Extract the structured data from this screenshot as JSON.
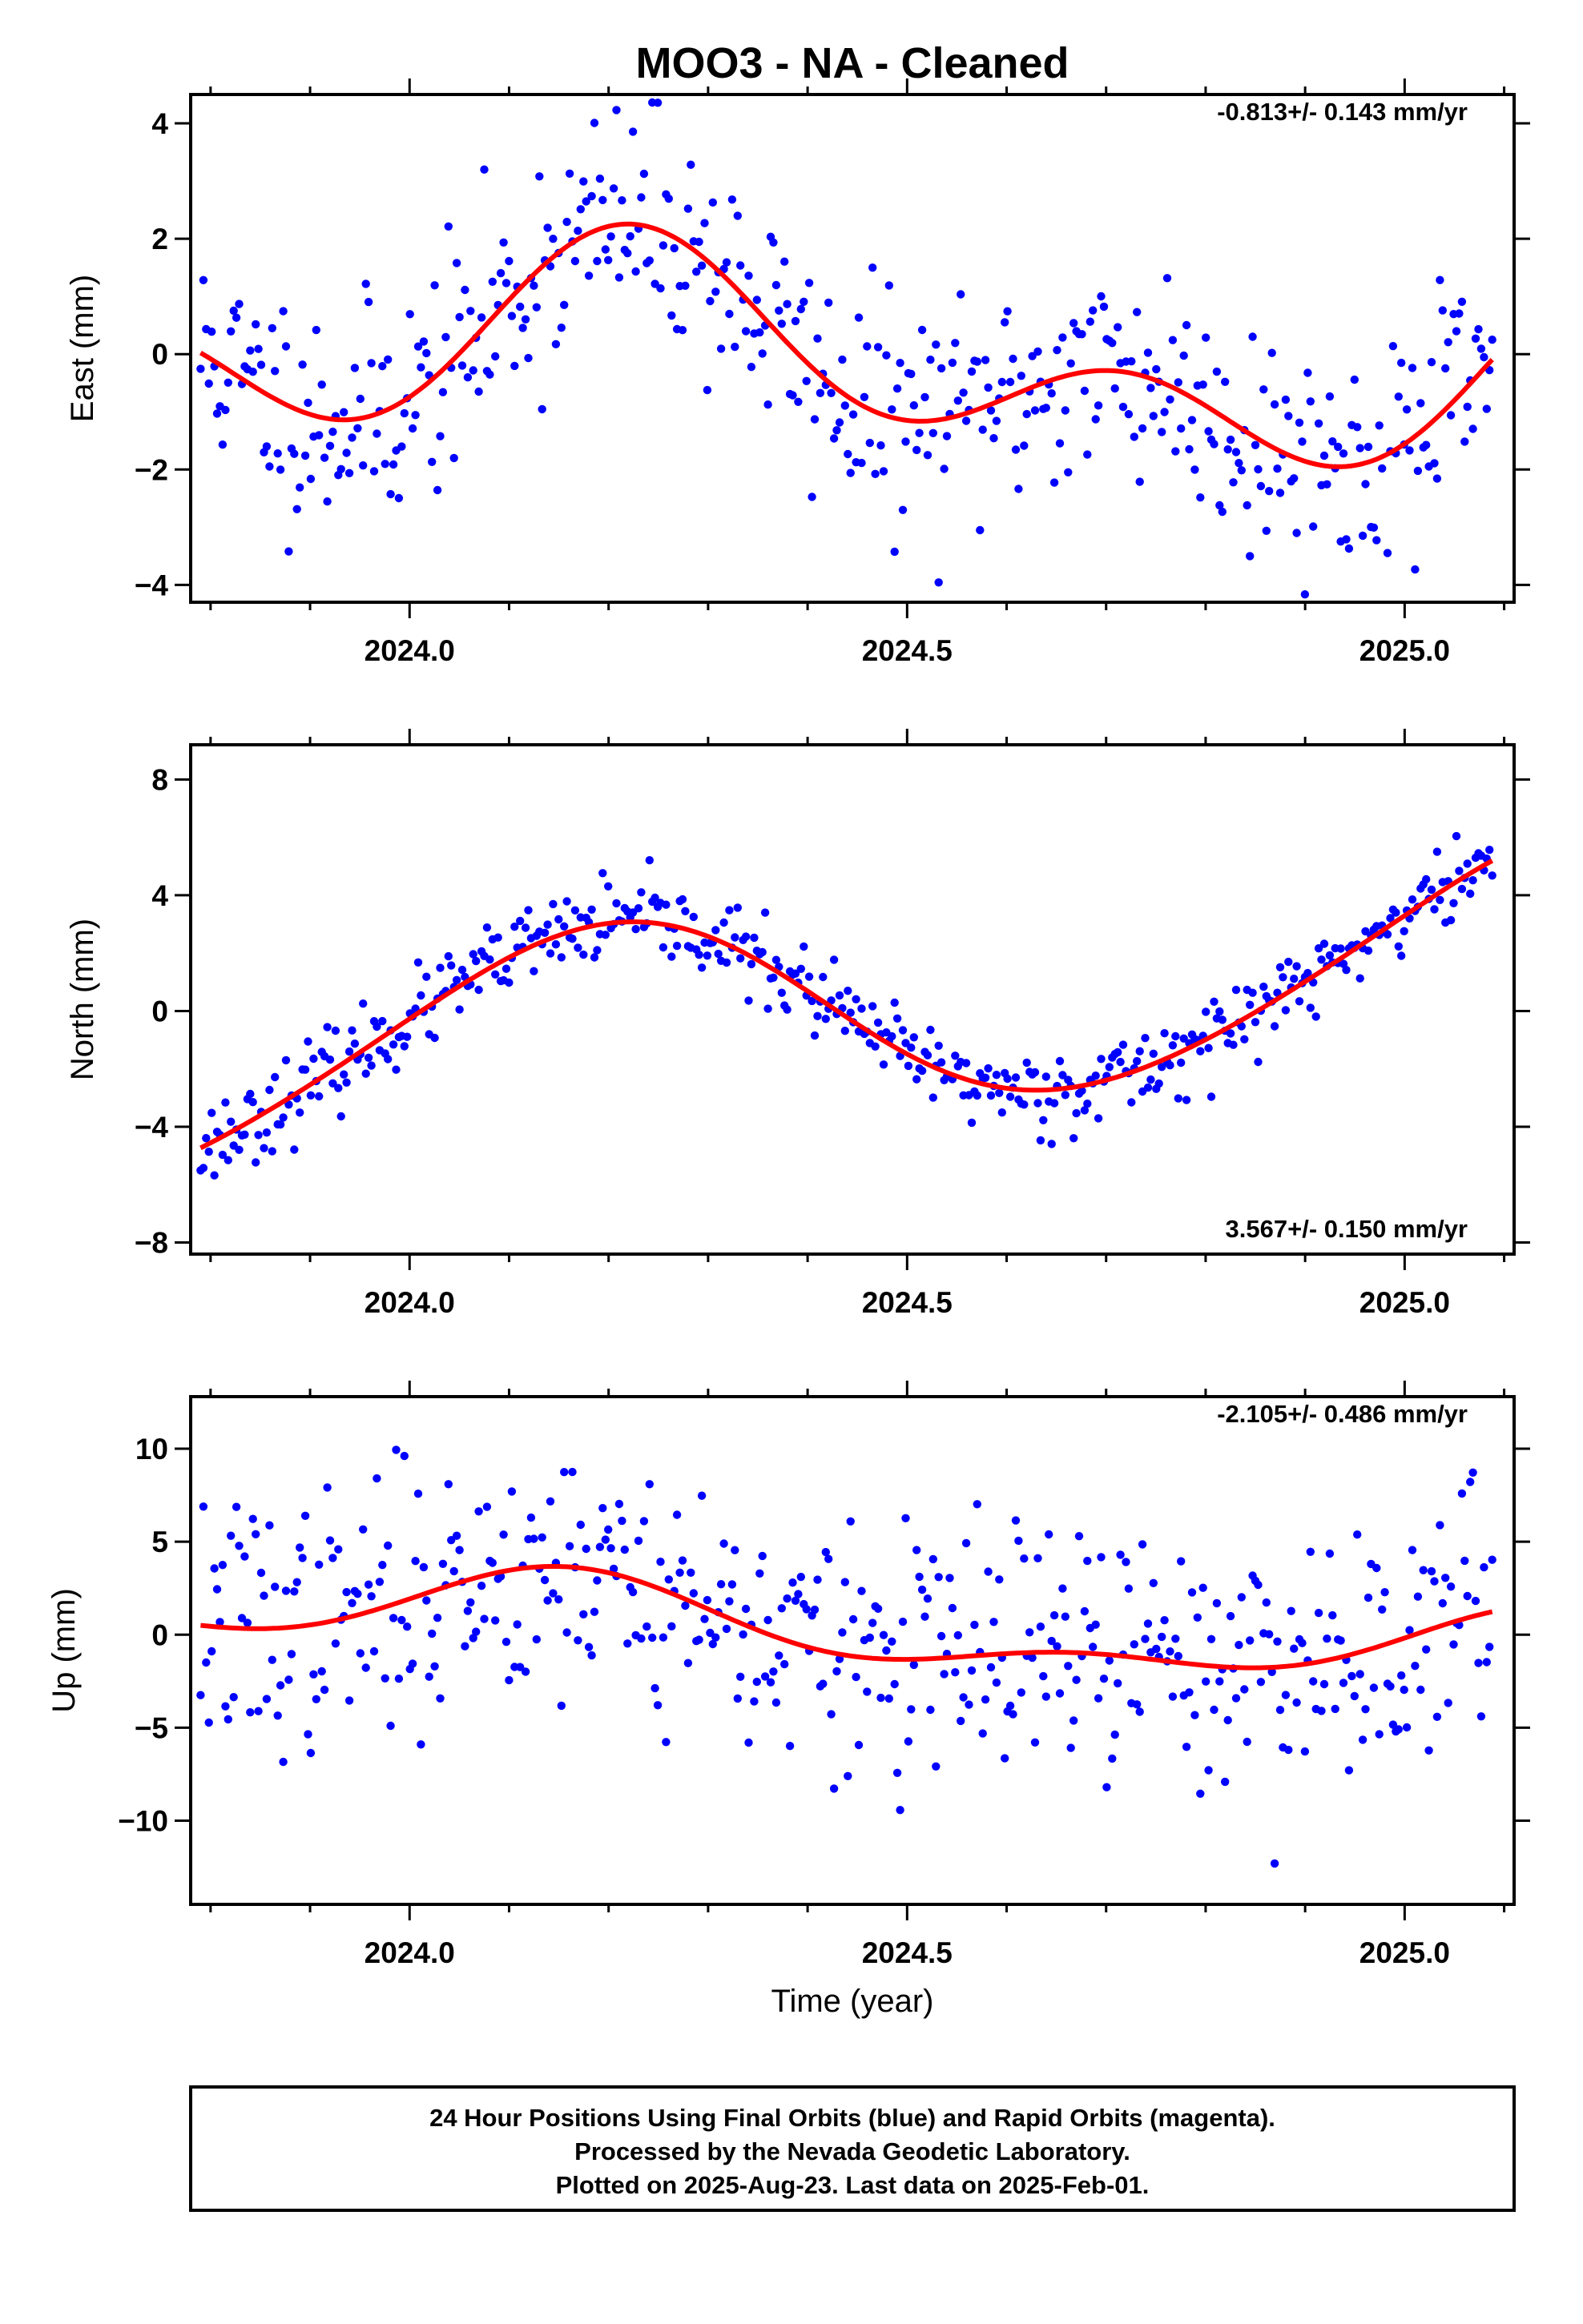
{
  "figure": {
    "title": "MOO3  - NA - Cleaned",
    "xlabel": "Time (year)",
    "footer_lines": [
      "24 Hour Positions Using Final Orbits (blue) and Rapid Orbits (magenta).",
      "Processed by the Nevada Geodetic Laboratory.",
      "Plotted on 2025-Aug-23. Last data on 2025-Feb-01."
    ]
  },
  "colors": {
    "points": "#0000ff",
    "fit": "#ff0000",
    "frame": "#000000"
  },
  "chart_data": [
    {
      "type": "scatter",
      "ylabel": "East (mm)",
      "rate_text": "-0.813+/- 0.143 mm/yr",
      "xlim": [
        2023.78,
        2025.11
      ],
      "ylim": [
        -4.3,
        4.5
      ],
      "x_major_ticks": [
        2024.0,
        2024.5,
        2025.0
      ],
      "x_tick_labels": [
        "2024.0",
        "2024.5",
        "2025.0"
      ],
      "x_minor_ticks": [
        2023.8,
        2023.9,
        2024.1,
        2024.2,
        2024.3,
        2024.4,
        2024.6,
        2024.7,
        2024.8,
        2024.9,
        2025.1
      ],
      "y_ticks": [
        -4,
        -2,
        0,
        2,
        4
      ],
      "y_tick_labels": [
        "−4",
        "−2",
        "0",
        "2",
        "4"
      ],
      "series": [
        {
          "name": "Final Orbits",
          "kind": "points",
          "model": {
            "offset": -0.1,
            "trend": -0.813,
            "seasonal": [
              [
                1.1,
                0.0
              ],
              [
                0.45,
                -1.0
              ]
            ],
            "noise_sd": 1.0,
            "seed": 11
          }
        },
        {
          "name": "Fit",
          "kind": "line",
          "model": {
            "offset": -0.1,
            "trend": -0.813,
            "seasonal": [
              [
                1.1,
                0.0
              ],
              [
                0.45,
                -1.0
              ]
            ],
            "noise_sd": 0,
            "seed": 0
          }
        }
      ]
    },
    {
      "type": "scatter",
      "ylabel": "North (mm)",
      "rate_text": "3.567+/- 0.150 mm/yr",
      "xlim": [
        2023.78,
        2025.11
      ],
      "ylim": [
        -8.4,
        9.2
      ],
      "x_major_ticks": [
        2024.0,
        2024.5,
        2025.0
      ],
      "x_tick_labels": [
        "2024.0",
        "2024.5",
        "2025.0"
      ],
      "x_minor_ticks": [
        2023.8,
        2023.9,
        2024.1,
        2024.2,
        2024.3,
        2024.4,
        2024.6,
        2024.7,
        2024.8,
        2024.9,
        2025.1
      ],
      "y_ticks": [
        -8,
        -4,
        0,
        4,
        8
      ],
      "y_tick_labels": [
        "−8",
        "−4",
        "0",
        "4",
        "8"
      ],
      "series": [
        {
          "name": "Final Orbits",
          "kind": "points",
          "model": {
            "offset": 0.1,
            "trend": 3.567,
            "seasonal": [
              [
                3.3,
                1.5
              ],
              [
                -0.1,
                -0.3
              ]
            ],
            "noise_sd": 0.7,
            "seed": 23
          }
        },
        {
          "name": "Fit",
          "kind": "line",
          "model": {
            "offset": 0.1,
            "trend": 3.567,
            "seasonal": [
              [
                3.3,
                1.5
              ],
              [
                -0.1,
                -0.3
              ]
            ],
            "noise_sd": 0,
            "seed": 0
          }
        }
      ]
    },
    {
      "type": "scatter",
      "ylabel": "Up (mm)",
      "rate_text": "-2.105+/- 0.486 mm/yr",
      "xlim": [
        2023.78,
        2025.11
      ],
      "ylim": [
        -14.5,
        12.8
      ],
      "x_major_ticks": [
        2024.0,
        2024.5,
        2025.0
      ],
      "x_tick_labels": [
        "2024.0",
        "2024.5",
        "2025.0"
      ],
      "x_minor_ticks": [
        2023.8,
        2023.9,
        2024.1,
        2024.2,
        2024.3,
        2024.4,
        2024.6,
        2024.7,
        2024.8,
        2024.9,
        2025.1
      ],
      "y_ticks": [
        -10,
        -5,
        0,
        5,
        10
      ],
      "y_tick_labels": [
        "−10",
        "−5",
        "0",
        "5",
        "10"
      ],
      "series": [
        {
          "name": "Final Orbits",
          "kind": "points",
          "model": {
            "offset": 0.3,
            "trend": -2.105,
            "seasonal": [
              [
                1.4,
                1.1
              ],
              [
                0.9,
                -0.4
              ]
            ],
            "noise_sd": 3.4,
            "seed": 37
          }
        },
        {
          "name": "Fit",
          "kind": "line",
          "model": {
            "offset": 0.3,
            "trend": -2.105,
            "seasonal": [
              [
                1.4,
                1.1
              ],
              [
                0.9,
                -0.4
              ]
            ],
            "noise_sd": 0,
            "seed": 0
          }
        }
      ]
    }
  ]
}
